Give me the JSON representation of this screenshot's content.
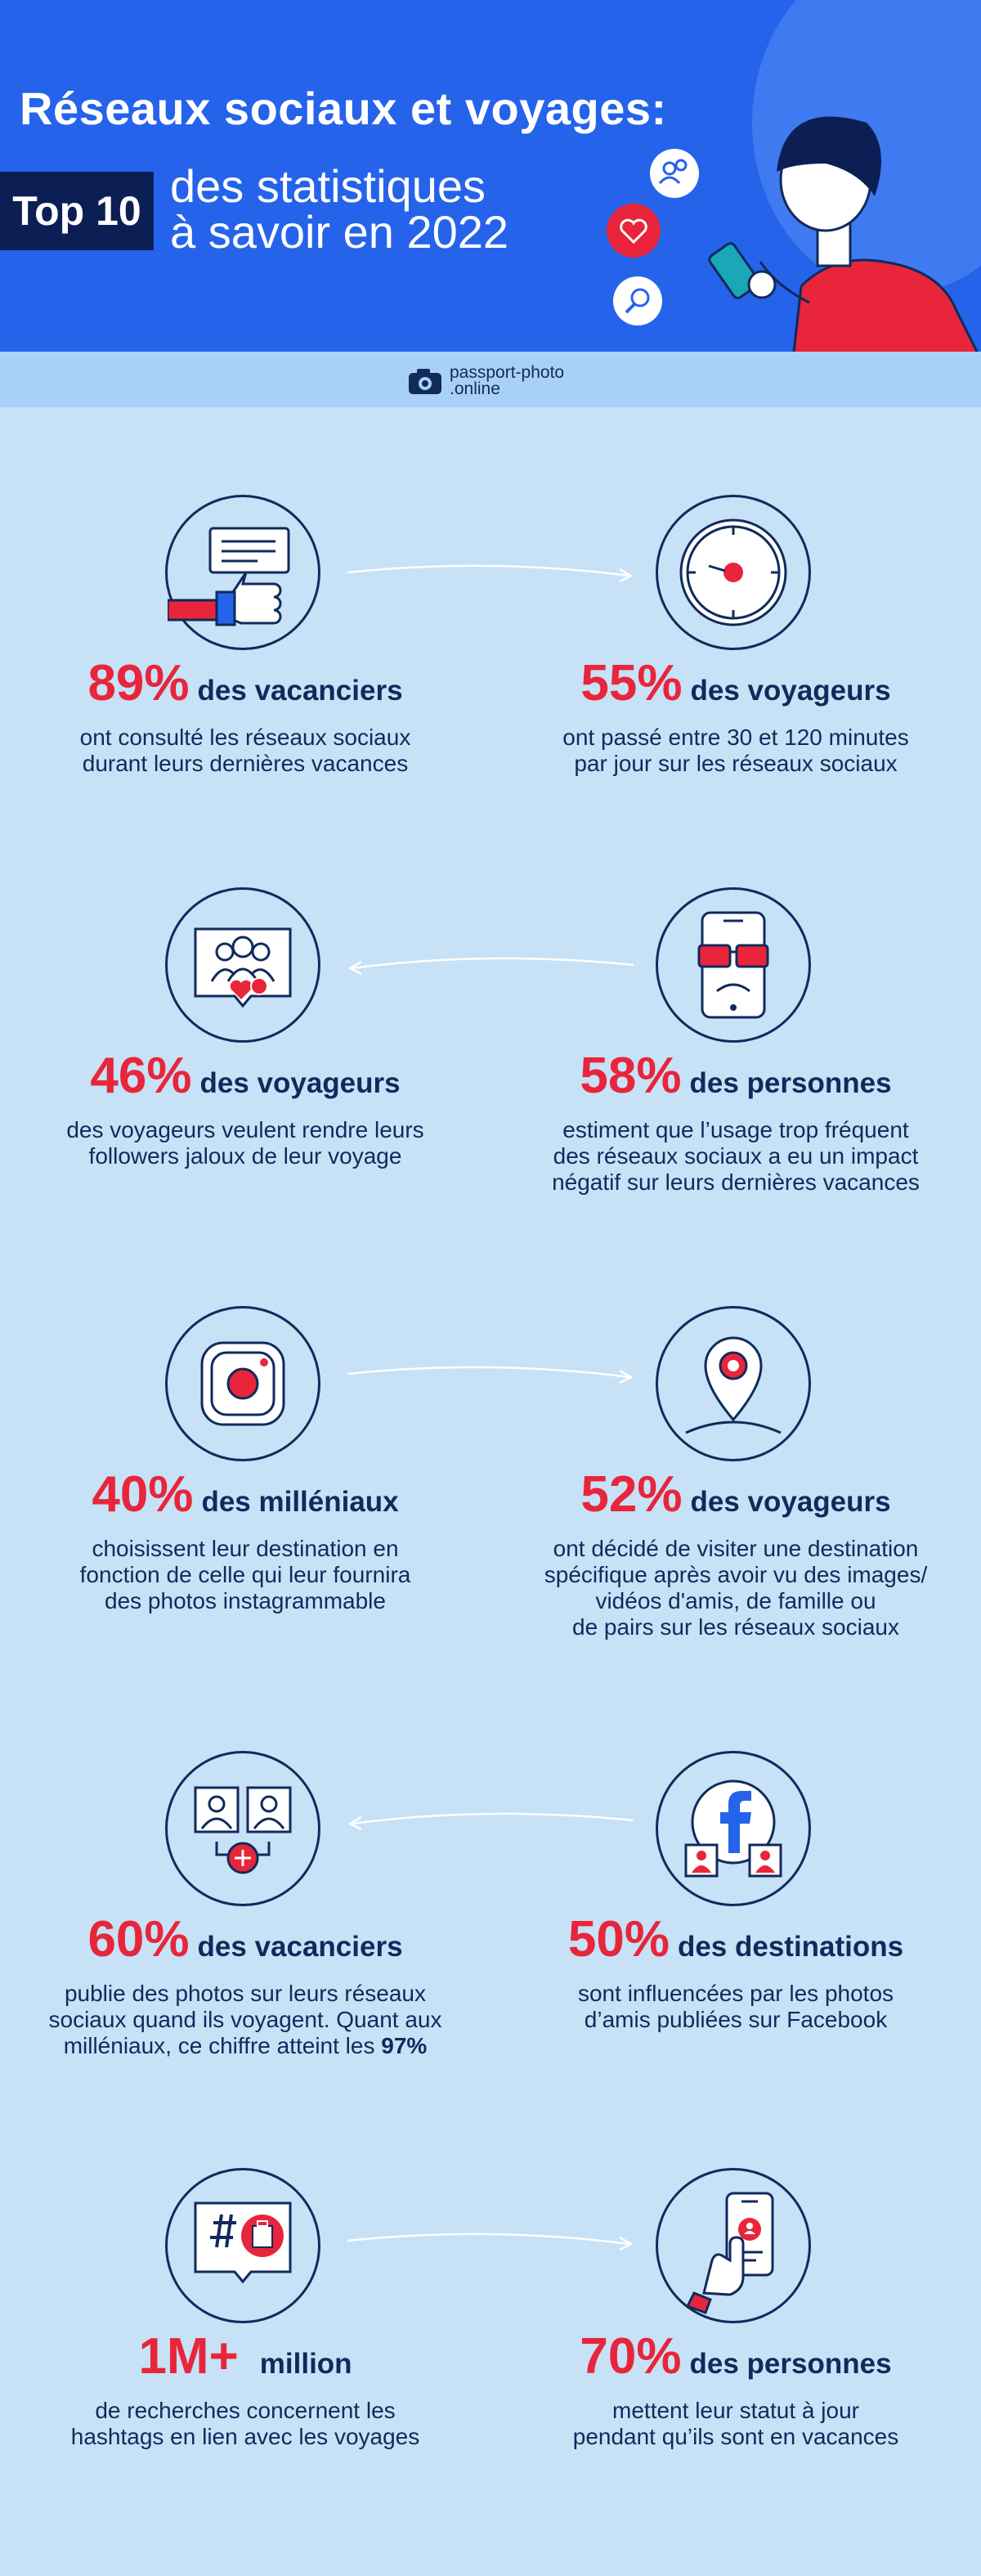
{
  "header": {
    "title_line1": "Réseaux sociaux et voyages:",
    "badge": "Top 10",
    "title_line2a": "des statistiques",
    "title_line2b": "à savoir en 2022"
  },
  "brand": {
    "line1": "passport-photo",
    "line2": ".online"
  },
  "colors": {
    "accent": "#e8253a",
    "navy": "#102a5c",
    "header_blue": "#2563eb",
    "background": "#c7e1f7"
  },
  "stats": [
    {
      "pct": "89%",
      "label": "des vacanciers",
      "desc": [
        "ont consulté les réseaux sociaux",
        "durant leurs dernières vacances"
      ],
      "icon": "thumbs-up-icon"
    },
    {
      "pct": "55%",
      "label": "des voyageurs",
      "desc": [
        "ont passé entre 30 et 120 minutes",
        "par jour sur les réseaux sociaux"
      ],
      "icon": "clock-icon"
    },
    {
      "pct": "46%",
      "label": "des voyageurs",
      "desc": [
        "des voyageurs veulent rendre leurs",
        "followers jaloux de leur voyage"
      ],
      "icon": "followers-icon"
    },
    {
      "pct": "58%",
      "label": "des personnes",
      "desc": [
        "estiment que l’usage trop fréquent",
        "des réseaux sociaux a eu un impact",
        "négatif sur leurs dernières vacances"
      ],
      "icon": "sad-phone-icon"
    },
    {
      "pct": "40%",
      "label": "des milléniaux",
      "desc": [
        "choisissent leur destination en",
        "fonction de celle qui leur fournira",
        "des photos instagrammable"
      ],
      "icon": "instagram-icon"
    },
    {
      "pct": "52%",
      "label": "des voyageurs",
      "desc": [
        "ont décidé de visiter une destination",
        "spécifique après avoir vu des images/",
        "vidéos d'amis, de famille ou",
        "de pairs sur les réseaux sociaux"
      ],
      "icon": "location-pin-icon"
    },
    {
      "pct": "60%",
      "label": "des vacanciers",
      "desc": [
        "publie des photos sur leurs réseaux",
        "sociaux quand ils voyagent. Quant aux",
        "milléniaux, ce chiffre atteint les "
      ],
      "desc_bold": "97%",
      "icon": "share-photos-icon"
    },
    {
      "pct": "50%",
      "label": "des destinations",
      "desc": [
        "sont influencées par les photos",
        "d’amis publiées sur Facebook"
      ],
      "icon": "facebook-icon"
    },
    {
      "pct": "1M+",
      "label": "million",
      "desc": [
        "de recherches concernent les",
        "hashtags en lien avec les voyages"
      ],
      "icon": "hashtag-icon"
    },
    {
      "pct": "70%",
      "label": "des personnes",
      "desc": [
        "mettent leur statut à jour",
        "pendant qu’ils sont en vacances"
      ],
      "icon": "phone-status-icon"
    }
  ]
}
